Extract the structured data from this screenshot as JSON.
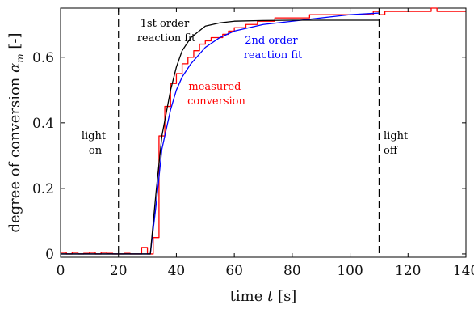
{
  "chart_data": {
    "type": "line",
    "xlabel_text": "time ",
    "xlabel_var": "t",
    "xlabel_unit": " [s]",
    "ylabel_text": "degree of conversion ",
    "ylabel_var": "α",
    "ylabel_sub": "m",
    "ylabel_unit": "  [-]",
    "xlim": [
      0,
      140
    ],
    "ylim": [
      -0.01,
      0.75
    ],
    "xticks": [
      "0",
      "20",
      "40",
      "60",
      "80",
      "100",
      "120",
      "140"
    ],
    "yticks": [
      "0",
      "0.2",
      "0.4",
      "0.6"
    ],
    "xtick_values": [
      0,
      20,
      40,
      60,
      80,
      100,
      120,
      140
    ],
    "ytick_values": [
      0,
      0.2,
      0.4,
      0.6
    ],
    "vlines": [
      {
        "x": 20,
        "label_lines": [
          "light",
          "on"
        ]
      },
      {
        "x": 110,
        "label_lines": [
          "light",
          "off"
        ]
      }
    ],
    "annotations": [
      {
        "lines": [
          "1st order",
          "reaction fit"
        ],
        "color": "#000000"
      },
      {
        "lines": [
          "2nd order",
          "reaction fit"
        ],
        "color": "#0000ff"
      },
      {
        "lines": [
          "measured",
          "conversion"
        ],
        "color": "#ff0000"
      }
    ],
    "series": [
      {
        "name": "measured conversion",
        "color": "#ff0000",
        "style": "step",
        "x": [
          0,
          2,
          4,
          6,
          8,
          10,
          12,
          14,
          16,
          18,
          20,
          22,
          24,
          26,
          28,
          30,
          32,
          34,
          36,
          38,
          40,
          42,
          44,
          46,
          48,
          50,
          52,
          54,
          56,
          58,
          60,
          62,
          64,
          66,
          68,
          70,
          72,
          74,
          76,
          78,
          80,
          82,
          84,
          86,
          88,
          90,
          92,
          94,
          96,
          98,
          100,
          102,
          104,
          106,
          108,
          110,
          112,
          114,
          116,
          118,
          120,
          122,
          124,
          126,
          128,
          130,
          132,
          134,
          136,
          138,
          140
        ],
        "y": [
          0.005,
          0.0,
          0.005,
          0.0,
          0.002,
          0.005,
          0.0,
          0.005,
          0.002,
          0.0,
          0.0,
          0.002,
          0.0,
          0.0,
          0.02,
          0.0,
          0.05,
          0.36,
          0.45,
          0.52,
          0.55,
          0.58,
          0.6,
          0.62,
          0.64,
          0.65,
          0.66,
          0.66,
          0.67,
          0.68,
          0.69,
          0.69,
          0.7,
          0.7,
          0.71,
          0.71,
          0.71,
          0.72,
          0.72,
          0.72,
          0.72,
          0.72,
          0.72,
          0.73,
          0.73,
          0.73,
          0.73,
          0.73,
          0.73,
          0.73,
          0.73,
          0.73,
          0.73,
          0.73,
          0.74,
          0.73,
          0.74,
          0.74,
          0.74,
          0.74,
          0.74,
          0.74,
          0.74,
          0.74,
          0.75,
          0.74,
          0.74,
          0.74,
          0.74,
          0.74,
          0.74
        ]
      },
      {
        "name": "2nd order reaction fit",
        "color": "#0000ff",
        "style": "line",
        "x": [
          0,
          20,
          31,
          33,
          35,
          38,
          40,
          42,
          45,
          50,
          55,
          60,
          70,
          80,
          90,
          100,
          110
        ],
        "y": [
          0,
          0,
          0,
          0.15,
          0.32,
          0.44,
          0.5,
          0.54,
          0.58,
          0.63,
          0.66,
          0.68,
          0.7,
          0.71,
          0.72,
          0.73,
          0.735
        ]
      },
      {
        "name": "1st order reaction fit",
        "color": "#000000",
        "style": "line",
        "x": [
          0,
          20,
          31,
          33,
          35,
          38,
          40,
          42,
          45,
          50,
          55,
          60,
          70,
          80,
          90,
          100,
          110
        ],
        "y": [
          0,
          0,
          0,
          0.19,
          0.36,
          0.5,
          0.57,
          0.62,
          0.66,
          0.695,
          0.705,
          0.71,
          0.712,
          0.713,
          0.713,
          0.713,
          0.713
        ]
      }
    ]
  }
}
